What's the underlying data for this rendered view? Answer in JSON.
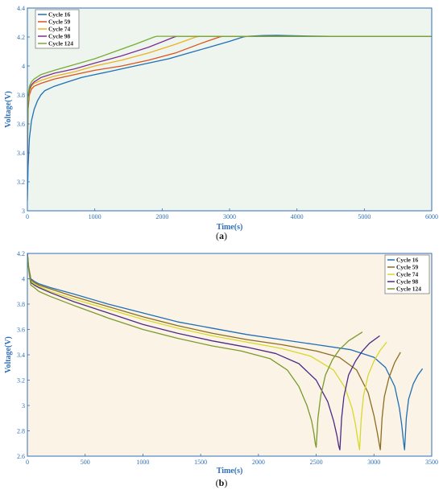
{
  "chart_data": [
    {
      "type": "line",
      "caption": "(a)",
      "xlabel": "Time(s)",
      "ylabel": "Voltage(V)",
      "xlim": [
        0,
        6000
      ],
      "ylim": [
        3,
        4.4
      ],
      "xticks": [
        0,
        1000,
        2000,
        3000,
        4000,
        5000,
        6000
      ],
      "yticks": [
        3,
        3.2,
        3.4,
        3.6,
        3.8,
        4,
        4.2,
        4.4
      ],
      "grid": false,
      "legend_position": "top-left",
      "background_color": "#eef5ef",
      "axis_color": "#2f6fb8",
      "series": [
        {
          "name": "Cycle 16",
          "color": "#1f6fb5",
          "x": [
            0,
            10,
            30,
            60,
            100,
            150,
            200,
            260,
            400,
            600,
            800,
            1000,
            1200,
            1500,
            1800,
            2100,
            2400,
            2700,
            3000,
            3200,
            3260,
            3500,
            3700,
            4000,
            4500,
            5000,
            5500,
            6000
          ],
          "y": [
            3.07,
            3.3,
            3.5,
            3.62,
            3.7,
            3.76,
            3.8,
            3.83,
            3.86,
            3.89,
            3.92,
            3.94,
            3.96,
            3.99,
            4.02,
            4.05,
            4.09,
            4.13,
            4.17,
            4.2,
            4.205,
            4.21,
            4.212,
            4.208,
            4.205,
            4.205,
            4.205,
            4.205
          ]
        },
        {
          "name": "Cycle 59",
          "color": "#d9541e",
          "x": [
            0,
            10,
            30,
            60,
            100,
            200,
            400,
            700,
            1000,
            1400,
            1800,
            2200,
            2600,
            2850,
            2900,
            3500,
            4500,
            6000
          ],
          "y": [
            3.29,
            3.7,
            3.8,
            3.84,
            3.86,
            3.88,
            3.91,
            3.94,
            3.97,
            4.0,
            4.04,
            4.09,
            4.16,
            4.2,
            4.205,
            4.205,
            4.205,
            4.205
          ]
        },
        {
          "name": "Cycle 74",
          "color": "#edb120",
          "x": [
            0,
            10,
            30,
            60,
            100,
            200,
            400,
            700,
            1000,
            1400,
            1800,
            2200,
            2500,
            2560,
            3500,
            4500,
            6000
          ],
          "y": [
            3.35,
            3.75,
            3.82,
            3.86,
            3.88,
            3.9,
            3.93,
            3.96,
            4.0,
            4.04,
            4.09,
            4.15,
            4.2,
            4.205,
            4.205,
            4.205,
            4.205
          ]
        },
        {
          "name": "Cycle 98",
          "color": "#7e2f8e",
          "x": [
            0,
            10,
            30,
            60,
            100,
            200,
            400,
            700,
            1000,
            1400,
            1800,
            2180,
            2220,
            3500,
            4500,
            6000
          ],
          "y": [
            3.4,
            3.78,
            3.84,
            3.87,
            3.89,
            3.92,
            3.95,
            3.98,
            4.02,
            4.07,
            4.13,
            4.2,
            4.205,
            4.205,
            4.205,
            4.205
          ]
        },
        {
          "name": "Cycle 124",
          "color": "#77ac30",
          "x": [
            0,
            10,
            30,
            60,
            100,
            200,
            400,
            700,
            1000,
            1300,
            1600,
            1880,
            1920,
            3500,
            4500,
            6000
          ],
          "y": [
            3.45,
            3.8,
            3.86,
            3.89,
            3.91,
            3.94,
            3.97,
            4.01,
            4.05,
            4.1,
            4.15,
            4.2,
            4.205,
            4.205,
            4.205,
            4.205
          ]
        }
      ]
    },
    {
      "type": "line",
      "caption": "(b)",
      "xlabel": "Time(s)",
      "ylabel": "Voltage(V)",
      "xlim": [
        0,
        3500
      ],
      "ylim": [
        2.6,
        4.2
      ],
      "xticks": [
        0,
        500,
        1000,
        1500,
        2000,
        2500,
        3000,
        3500
      ],
      "yticks": [
        2.6,
        2.8,
        3,
        3.2,
        3.4,
        3.6,
        3.8,
        4,
        4.2
      ],
      "grid": false,
      "legend_position": "top-right",
      "background_color": "#fbf3e6",
      "axis_color": "#2f6fb8",
      "series": [
        {
          "name": "Cycle 16",
          "color": "#1f6fb5",
          "x": [
            0,
            10,
            30,
            60,
            100,
            200,
            400,
            700,
            1000,
            1300,
            1600,
            1900,
            2200,
            2500,
            2800,
            3000,
            3100,
            3180,
            3220,
            3240,
            3255,
            3265,
            3280,
            3300,
            3340,
            3380,
            3420
          ],
          "y": [
            4.2,
            4.1,
            4.0,
            3.98,
            3.96,
            3.93,
            3.88,
            3.8,
            3.73,
            3.66,
            3.61,
            3.56,
            3.52,
            3.48,
            3.44,
            3.38,
            3.3,
            3.15,
            2.98,
            2.85,
            2.72,
            2.65,
            2.9,
            3.05,
            3.17,
            3.24,
            3.29
          ]
        },
        {
          "name": "Cycle 59",
          "color": "#8c6d1f",
          "x": [
            0,
            10,
            30,
            60,
            100,
            200,
            400,
            700,
            1000,
            1300,
            1600,
            1900,
            2200,
            2500,
            2700,
            2850,
            2950,
            3000,
            3030,
            3045,
            3055,
            3070,
            3090,
            3130,
            3180,
            3230
          ],
          "y": [
            4.2,
            4.1,
            3.99,
            3.97,
            3.95,
            3.92,
            3.86,
            3.78,
            3.7,
            3.63,
            3.57,
            3.52,
            3.48,
            3.43,
            3.38,
            3.28,
            3.1,
            2.92,
            2.78,
            2.7,
            2.65,
            2.9,
            3.07,
            3.22,
            3.34,
            3.42
          ]
        },
        {
          "name": "Cycle 74",
          "color": "#d8d82a",
          "x": [
            0,
            10,
            30,
            60,
            100,
            200,
            400,
            700,
            1000,
            1300,
            1600,
            1900,
            2200,
            2450,
            2650,
            2750,
            2810,
            2840,
            2860,
            2875,
            2890,
            2910,
            2950,
            3000,
            3050,
            3110
          ],
          "y": [
            4.2,
            4.1,
            3.98,
            3.96,
            3.94,
            3.9,
            3.84,
            3.76,
            3.68,
            3.61,
            3.55,
            3.5,
            3.45,
            3.39,
            3.28,
            3.14,
            2.98,
            2.85,
            2.73,
            2.65,
            2.9,
            3.08,
            3.24,
            3.35,
            3.43,
            3.5
          ]
        },
        {
          "name": "Cycle 98",
          "color": "#4b2a86",
          "x": [
            0,
            10,
            30,
            60,
            100,
            200,
            400,
            700,
            1000,
            1300,
            1600,
            1900,
            2150,
            2350,
            2500,
            2600,
            2650,
            2680,
            2695,
            2705,
            2720,
            2740,
            2780,
            2840,
            2900,
            2960,
            3050
          ],
          "y": [
            4.2,
            4.09,
            3.97,
            3.95,
            3.93,
            3.89,
            3.82,
            3.73,
            3.64,
            3.57,
            3.51,
            3.46,
            3.41,
            3.33,
            3.2,
            3.03,
            2.88,
            2.76,
            2.68,
            2.65,
            2.9,
            3.07,
            3.24,
            3.35,
            3.43,
            3.49,
            3.55
          ]
        },
        {
          "name": "Cycle 124",
          "color": "#7a9a2e",
          "x": [
            0,
            10,
            30,
            60,
            100,
            200,
            400,
            700,
            1000,
            1300,
            1600,
            1850,
            2100,
            2250,
            2350,
            2420,
            2460,
            2480,
            2492,
            2500,
            2515,
            2540,
            2580,
            2640,
            2700,
            2780,
            2900
          ],
          "y": [
            4.2,
            4.08,
            3.95,
            3.93,
            3.9,
            3.86,
            3.79,
            3.69,
            3.6,
            3.53,
            3.47,
            3.43,
            3.37,
            3.28,
            3.15,
            3.0,
            2.88,
            2.78,
            2.7,
            2.67,
            2.9,
            3.08,
            3.24,
            3.36,
            3.44,
            3.51,
            3.58
          ]
        }
      ]
    }
  ]
}
